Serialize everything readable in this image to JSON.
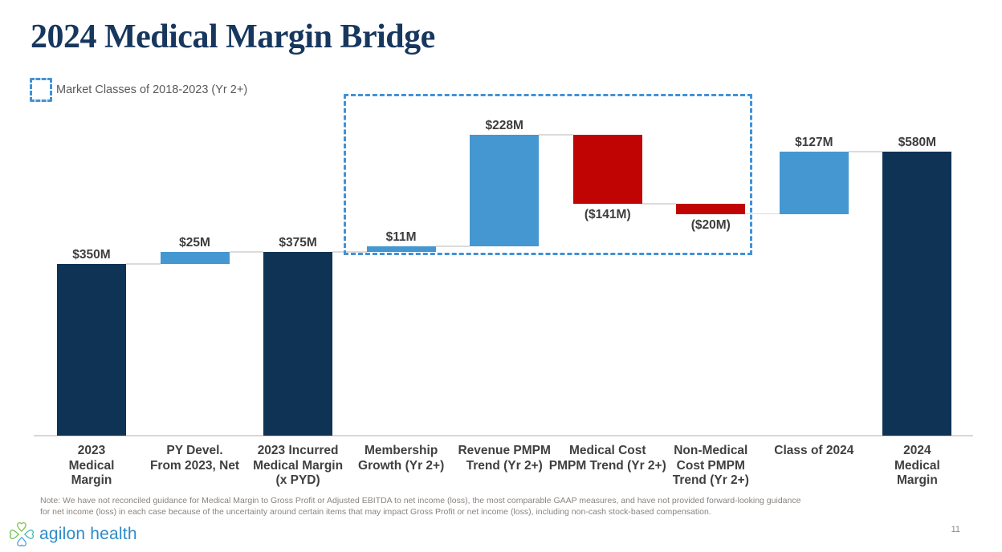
{
  "slide": {
    "title": "2024 Medical Margin Bridge",
    "page_number": "11",
    "note_line1": "Note: We have not reconciled guidance for Medical Margin to Gross Profit or Adjusted EBITDA to net income (loss), the most comparable GAAP measures, and have not provided forward-looking guidance",
    "note_line2": "for net income (loss) in each case because of the uncertainty around certain items that may impact Gross Profit or net income (loss), including non-cash stock-based compensation.",
    "logo_text": "agilon health"
  },
  "legend": {
    "label": "Market Classes of 2018-2023 (Yr 2+)"
  },
  "chart_data": {
    "type": "bar",
    "subtype": "waterfall",
    "title": "2024 Medical Margin Bridge",
    "unit": "$M",
    "ylim": [
      0,
      650
    ],
    "grid": false,
    "bars": [
      {
        "category": "2023 Medical Margin",
        "category_lines": [
          "2023",
          "Medical",
          "Margin"
        ],
        "label": "$350M",
        "value": 350,
        "start": 0,
        "end": 350,
        "kind": "total",
        "label_position": "above"
      },
      {
        "category": "PY Devel. From 2023, Net",
        "category_lines": [
          "PY Devel.",
          "From 2023, Net"
        ],
        "label": "$25M",
        "value": 25,
        "start": 350,
        "end": 375,
        "kind": "increase",
        "label_position": "above"
      },
      {
        "category": "2023 Incurred Medical Margin (x PYD)",
        "category_lines": [
          "2023 Incurred",
          "Medical Margin",
          "(x PYD)"
        ],
        "label": "$375M",
        "value": 375,
        "start": 0,
        "end": 375,
        "kind": "total",
        "label_position": "above"
      },
      {
        "category": "Membership Growth (Yr 2+)",
        "category_lines": [
          "Membership",
          "Growth (Yr 2+)"
        ],
        "label": "$11M",
        "value": 11,
        "start": 375,
        "end": 386,
        "kind": "increase",
        "label_position": "above"
      },
      {
        "category": "Revenue PMPM Trend (Yr 2+)",
        "category_lines": [
          "Revenue PMPM",
          "Trend (Yr 2+)"
        ],
        "label": "$228M",
        "value": 228,
        "start": 386,
        "end": 614,
        "kind": "increase",
        "label_position": "above"
      },
      {
        "category": "Medical Cost PMPM Trend (Yr 2+)",
        "category_lines": [
          "Medical Cost",
          "PMPM Trend (Yr 2+)"
        ],
        "label": "($141M)",
        "value": -141,
        "start": 614,
        "end": 473,
        "kind": "decrease",
        "label_position": "below"
      },
      {
        "category": "Non-Medical Cost PMPM Trend (Yr 2+)",
        "category_lines": [
          "Non-Medical",
          "Cost PMPM",
          "Trend (Yr 2+)"
        ],
        "label": "($20M)",
        "value": -20,
        "start": 473,
        "end": 453,
        "kind": "decrease",
        "label_position": "below"
      },
      {
        "category": "Class of 2024",
        "category_lines": [
          "Class of 2024"
        ],
        "label": "$127M",
        "value": 127,
        "start": 453,
        "end": 580,
        "kind": "increase",
        "label_position": "above"
      },
      {
        "category": "2024 Medical Margin",
        "category_lines": [
          "2024",
          "Medical",
          "Margin"
        ],
        "label": "$580M",
        "value": 580,
        "start": 0,
        "end": 580,
        "kind": "total",
        "label_position": "above"
      }
    ],
    "colors": {
      "total": "#0E3355",
      "increase": "#4597D1",
      "decrease": "#C00404",
      "connector": "#DBDBDB",
      "highlight_border": "#4292D5",
      "title_text": "#17375E",
      "label_text": "#404040"
    },
    "highlight_box": {
      "from_bar_index": 3,
      "to_bar_index": 6,
      "legend_label": "Market Classes of 2018-2023 (Yr 2+)"
    },
    "legend_position": "top-left"
  }
}
